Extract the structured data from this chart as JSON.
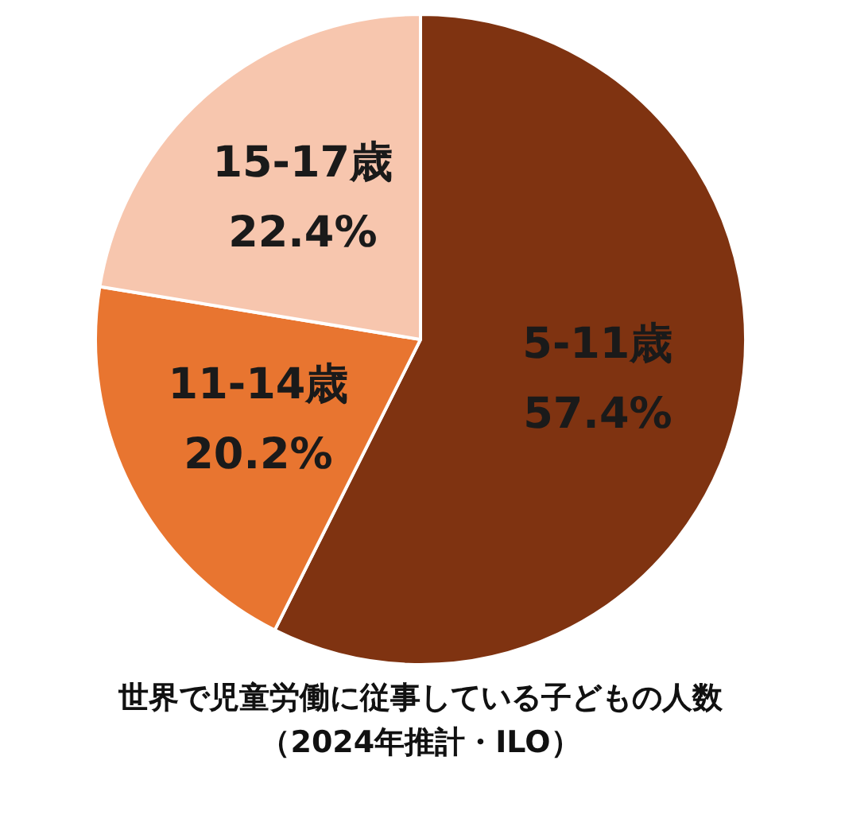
{
  "chart_data": {
    "type": "pie",
    "title": "世界で児童労働に従事している子どもの人数",
    "subtitle": "（2024年推計・ILO）",
    "categories": [
      "5-11歳",
      "11-14歳",
      "15-17歳"
    ],
    "values": [
      57.4,
      20.2,
      22.4
    ],
    "value_labels": [
      "57.4%",
      "20.2%",
      "22.4%"
    ],
    "colors": [
      "#7f3311",
      "#e87530",
      "#f7c6ae"
    ],
    "legend": false
  }
}
